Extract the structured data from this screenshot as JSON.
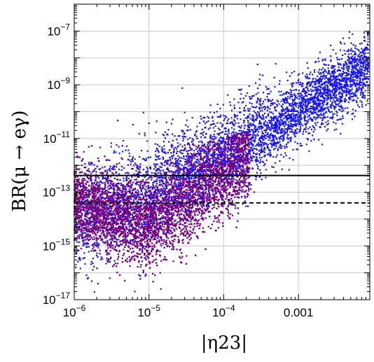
{
  "chart_data": {
    "type": "scatter",
    "title": "",
    "xlabel": "|η23|",
    "ylabel": "BR(μ → eγ)",
    "xscale": "log",
    "yscale": "log",
    "xlim": [
      1e-06,
      0.009
    ],
    "ylim": [
      1e-17,
      1e-06
    ],
    "grid": true,
    "legend": "none",
    "x_tick_labels": [
      {
        "value": 1e-06,
        "base": "10",
        "exp": "−6"
      },
      {
        "value": 1e-05,
        "base": "10",
        "exp": "−5"
      },
      {
        "value": 0.0001,
        "base": "10",
        "exp": "−4"
      },
      {
        "value": 0.001,
        "text": "0.001"
      }
    ],
    "y_tick_labels": [
      {
        "value": 1e-07,
        "base": "10",
        "exp": "−7"
      },
      {
        "value": 1e-09,
        "base": "10",
        "exp": "−9"
      },
      {
        "value": 1e-11,
        "base": "10",
        "exp": "−11"
      },
      {
        "value": 1e-13,
        "base": "10",
        "exp": "−13"
      },
      {
        "value": 1e-15,
        "base": "10",
        "exp": "−15"
      },
      {
        "value": 1e-17,
        "base": "10",
        "exp": "−17"
      }
    ],
    "reference_lines": [
      {
        "name": "solid-limit",
        "y": 4.2e-13,
        "style": "solid",
        "color": "#000000"
      },
      {
        "name": "dashed-limit",
        "y": 4e-14,
        "style": "dashed",
        "color": "#000000"
      }
    ],
    "series": [
      {
        "color": "#1414ff",
        "description_points": [
          [
            1e-06,
            6e-14
          ],
          [
            1.5e-06,
            2e-13
          ],
          [
            3e-06,
            6e-13
          ],
          [
            8e-06,
            1.5e-12
          ],
          [
            2e-05,
            3e-12
          ],
          [
            6e-05,
            6e-12
          ],
          [
            0.00015,
            2e-11
          ],
          [
            0.0003,
            1e-10
          ],
          [
            0.0006,
            6e-10
          ],
          [
            0.0015,
            3e-09
          ],
          [
            0.003,
            1.5e-08
          ],
          [
            0.006,
            5e-08
          ],
          [
            0.008,
            8e-08
          ]
        ]
      },
      {
        "color": "#7a007a",
        "description_points": [
          [
            1e-06,
            1e-14
          ],
          [
            2e-06,
            5e-14
          ],
          [
            5e-06,
            1e-14
          ],
          [
            8e-06,
            3e-15
          ],
          [
            1.5e-05,
            6e-15
          ],
          [
            3e-05,
            2e-14
          ],
          [
            6e-05,
            1e-13
          ],
          [
            0.0001,
            5e-13
          ],
          [
            0.00015,
            3e-12
          ],
          [
            0.0002,
            8e-12
          ],
          [
            1e-05,
            4e-12
          ],
          [
            3e-06,
            8e-13
          ]
        ]
      }
    ]
  }
}
